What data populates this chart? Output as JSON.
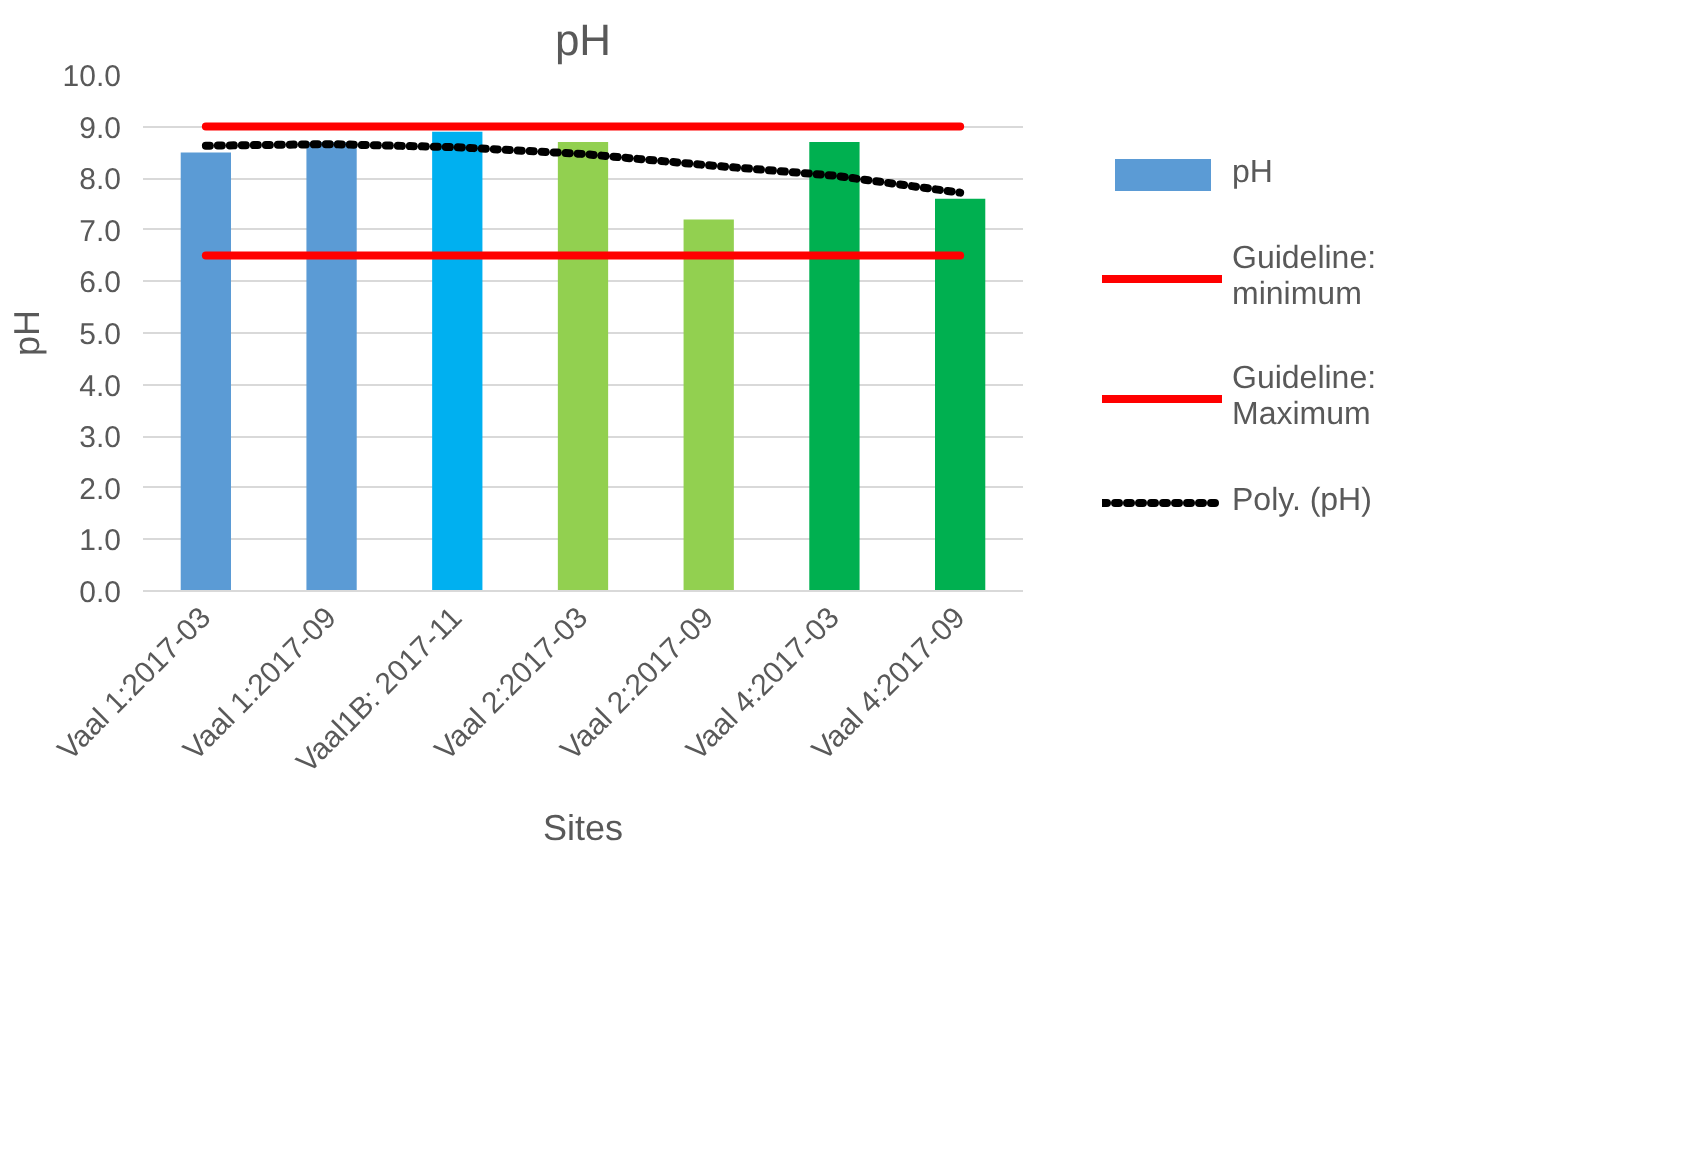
{
  "chart_data": {
    "type": "bar",
    "title": "pH",
    "xlabel": "Sites",
    "ylabel": "pH",
    "categories": [
      "Vaal 1:2017-03",
      "Vaal 1:2017-09",
      "Vaal1B: 2017-11",
      "Vaal 2:2017-03",
      "Vaal 2:2017-09",
      "Vaal 4:2017-03",
      "Vaal 4:2017-09"
    ],
    "series": [
      {
        "name": "pH",
        "color": "#5b9bd5",
        "colors": [
          "#5b9bd5",
          "#5b9bd5",
          "#00b0f0",
          "#92d050",
          "#92d050",
          "#00b050",
          "#00b050"
        ],
        "values": [
          8.5,
          8.7,
          8.9,
          8.7,
          7.2,
          8.7,
          7.6
        ]
      },
      {
        "name": "Guideline: minimum",
        "type": "line",
        "color": "#ff0000",
        "line_style": "solid",
        "values": [
          6.5,
          6.5,
          6.5,
          6.5,
          6.5,
          6.5,
          6.5
        ]
      },
      {
        "name": "Guideline: Maximum",
        "type": "line",
        "color": "#ff0000",
        "line_style": "solid",
        "values": [
          9.0,
          9.0,
          9.0,
          9.0,
          9.0,
          9.0,
          9.0
        ]
      },
      {
        "name": "Poly. (pH)",
        "type": "line",
        "color": "#000000",
        "line_style": "dotted",
        "values": [
          8.63,
          8.66,
          8.6,
          8.47,
          8.25,
          8.05,
          7.72
        ]
      }
    ],
    "ylim": [
      0,
      10
    ],
    "yticks": [
      {
        "value": 0,
        "label": "0.0"
      },
      {
        "value": 1,
        "label": "1.0"
      },
      {
        "value": 2,
        "label": "2.0"
      },
      {
        "value": 3,
        "label": "3.0"
      },
      {
        "value": 4,
        "label": "4.0"
      },
      {
        "value": 5,
        "label": "5.0"
      },
      {
        "value": 6,
        "label": "6.0"
      },
      {
        "value": 7,
        "label": "7.0"
      },
      {
        "value": 8,
        "label": "8.0"
      },
      {
        "value": 9,
        "label": "9.0"
      },
      {
        "value": 10,
        "label": "10.0"
      }
    ],
    "grid": "y",
    "legend": "right"
  }
}
